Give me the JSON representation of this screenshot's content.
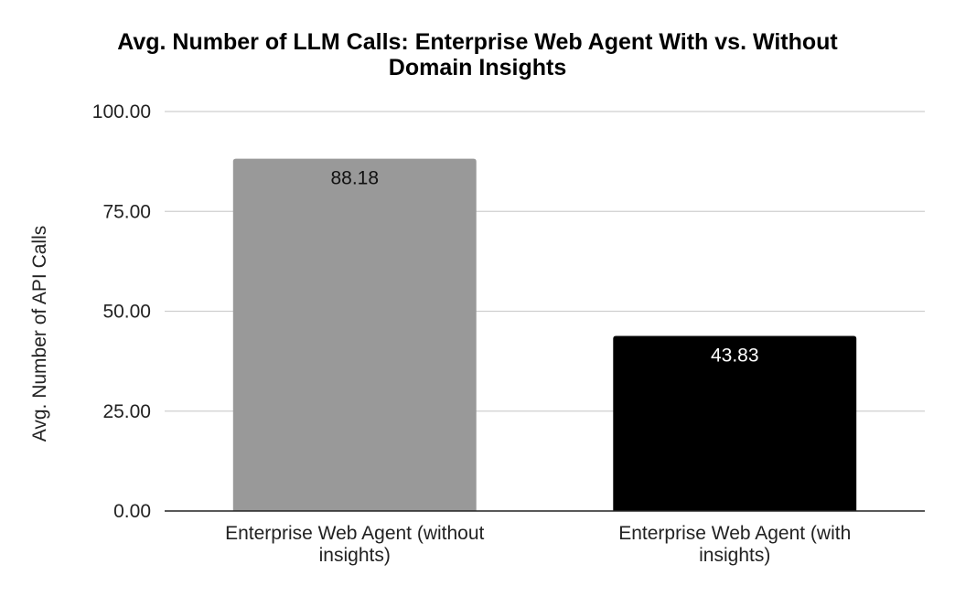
{
  "chart_data": {
    "type": "bar",
    "title_lines": [
      "Avg. Number of LLM Calls: Enterprise Web Agent With vs. Without",
      "Domain Insights"
    ],
    "ylabel": "Avg. Number of API Calls",
    "xlabel": "",
    "ylim": [
      0,
      100
    ],
    "yticks": [
      "0.00",
      "25.00",
      "50.00",
      "75.00",
      "100.00"
    ],
    "ytick_values": [
      0,
      25,
      50,
      75,
      100
    ],
    "grid": true,
    "categories": [
      [
        "Enterprise Web Agent (without",
        "insights)"
      ],
      [
        "Enterprise Web Agent (with",
        "insights)"
      ]
    ],
    "values": [
      88.18,
      43.83
    ],
    "value_labels": [
      "88.18",
      "43.83"
    ],
    "colors": [
      "#999999",
      "#000000"
    ],
    "label_colors": [
      "#111111",
      "#ffffff"
    ]
  }
}
